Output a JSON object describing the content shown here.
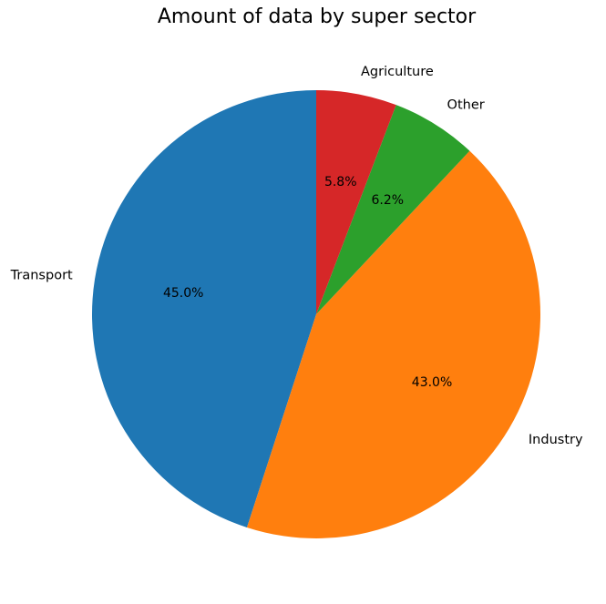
{
  "chart_data": {
    "type": "pie",
    "title": "Amount of data by super sector",
    "slices": [
      {
        "label": "Transport",
        "value": 45.0,
        "pct_label": "45.0%",
        "color": "#1f77b4"
      },
      {
        "label": "Industry",
        "value": 43.0,
        "pct_label": "43.0%",
        "color": "#ff7f0e"
      },
      {
        "label": "Other",
        "value": 6.2,
        "pct_label": "6.2%",
        "color": "#2ca02c"
      },
      {
        "label": "Agriculture",
        "value": 5.8,
        "pct_label": "5.8%",
        "color": "#d62728"
      }
    ],
    "start_angle": "top",
    "direction": "counterclockwise",
    "legend": "none"
  }
}
